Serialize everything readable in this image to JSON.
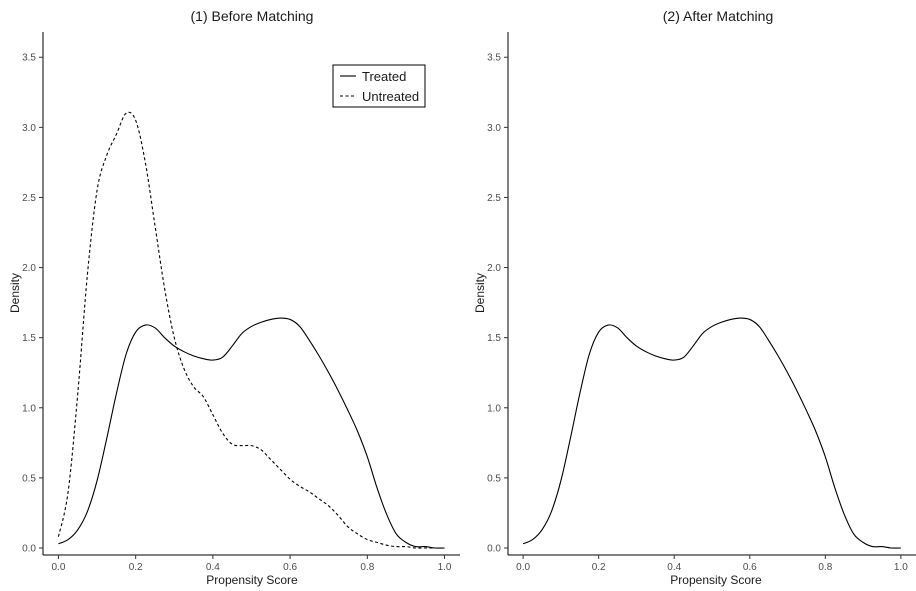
{
  "chart_data": [
    {
      "type": "line",
      "title": "(1) Before Matching",
      "xlabel": "Propensity Score",
      "ylabel": "Density",
      "xlim": [
        -0.04,
        1.04
      ],
      "ylim": [
        -0.05,
        3.68
      ],
      "x_ticks": [
        0.0,
        0.2,
        0.4,
        0.6,
        0.8,
        1.0
      ],
      "x_tick_labels": [
        "0.0",
        "0.2",
        "0.4",
        "0.6",
        "0.8",
        "1.0"
      ],
      "y_ticks": [
        0.0,
        0.5,
        1.0,
        1.5,
        2.0,
        2.5,
        3.0,
        3.5
      ],
      "y_tick_labels": [
        "0.0",
        "0.5",
        "1.0",
        "1.5",
        "2.0",
        "2.5",
        "3.0",
        "3.5"
      ],
      "grid": false,
      "legend": {
        "position": "top-right",
        "entries": [
          "Treated",
          "Untreated"
        ]
      },
      "series": [
        {
          "name": "Treated",
          "line_style": "solid",
          "color": "#000000",
          "x": [
            0.0,
            0.025,
            0.05,
            0.075,
            0.1,
            0.125,
            0.15,
            0.175,
            0.2,
            0.225,
            0.25,
            0.275,
            0.3,
            0.325,
            0.35,
            0.375,
            0.4,
            0.425,
            0.45,
            0.475,
            0.5,
            0.525,
            0.55,
            0.575,
            0.6,
            0.625,
            0.65,
            0.675,
            0.7,
            0.725,
            0.75,
            0.775,
            0.8,
            0.825,
            0.85,
            0.875,
            0.9,
            0.925,
            0.95,
            0.975,
            1.0
          ],
          "y": [
            0.03,
            0.06,
            0.13,
            0.26,
            0.48,
            0.78,
            1.1,
            1.38,
            1.54,
            1.59,
            1.57,
            1.5,
            1.44,
            1.4,
            1.37,
            1.35,
            1.34,
            1.36,
            1.44,
            1.53,
            1.58,
            1.61,
            1.63,
            1.64,
            1.63,
            1.58,
            1.48,
            1.37,
            1.25,
            1.12,
            0.98,
            0.83,
            0.65,
            0.43,
            0.24,
            0.1,
            0.04,
            0.01,
            0.01,
            0.0,
            0.0
          ]
        },
        {
          "name": "Untreated",
          "line_style": "dashed",
          "color": "#000000",
          "x": [
            0.0,
            0.025,
            0.05,
            0.075,
            0.1,
            0.125,
            0.15,
            0.175,
            0.2,
            0.225,
            0.25,
            0.275,
            0.3,
            0.325,
            0.35,
            0.375,
            0.4,
            0.425,
            0.45,
            0.475,
            0.5,
            0.525,
            0.55,
            0.575,
            0.6,
            0.625,
            0.65,
            0.675,
            0.7,
            0.725,
            0.75,
            0.775,
            0.8,
            0.825,
            0.85,
            0.875,
            0.9,
            0.925,
            0.95,
            0.975,
            1.0
          ],
          "y": [
            0.08,
            0.4,
            1.1,
            1.95,
            2.55,
            2.8,
            2.95,
            3.1,
            3.05,
            2.75,
            2.3,
            1.85,
            1.5,
            1.28,
            1.15,
            1.08,
            0.95,
            0.82,
            0.74,
            0.73,
            0.73,
            0.7,
            0.63,
            0.56,
            0.49,
            0.44,
            0.4,
            0.35,
            0.3,
            0.23,
            0.15,
            0.1,
            0.06,
            0.04,
            0.02,
            0.01,
            0.01,
            0.0,
            0.0,
            0.0,
            0.0
          ]
        }
      ]
    },
    {
      "type": "line",
      "title": "(2) After Matching",
      "xlabel": "Propensity Score",
      "ylabel": "Density",
      "xlim": [
        -0.04,
        1.04
      ],
      "ylim": [
        -0.05,
        3.68
      ],
      "x_ticks": [
        0.0,
        0.2,
        0.4,
        0.6,
        0.8,
        1.0
      ],
      "x_tick_labels": [
        "0.0",
        "0.2",
        "0.4",
        "0.6",
        "0.8",
        "1.0"
      ],
      "y_ticks": [
        0.0,
        0.5,
        1.0,
        1.5,
        2.0,
        2.5,
        3.0,
        3.5
      ],
      "y_tick_labels": [
        "0.0",
        "0.5",
        "1.0",
        "1.5",
        "2.0",
        "2.5",
        "3.0",
        "3.5"
      ],
      "grid": false,
      "series": [
        {
          "line_style": "solid",
          "color": "#000000",
          "x": [
            0.0,
            0.025,
            0.05,
            0.075,
            0.1,
            0.125,
            0.15,
            0.175,
            0.2,
            0.225,
            0.25,
            0.275,
            0.3,
            0.325,
            0.35,
            0.375,
            0.4,
            0.425,
            0.45,
            0.475,
            0.5,
            0.525,
            0.55,
            0.575,
            0.6,
            0.625,
            0.65,
            0.675,
            0.7,
            0.725,
            0.75,
            0.775,
            0.8,
            0.825,
            0.85,
            0.875,
            0.9,
            0.925,
            0.95,
            0.975,
            1.0
          ],
          "y": [
            0.03,
            0.06,
            0.13,
            0.26,
            0.48,
            0.78,
            1.1,
            1.38,
            1.54,
            1.59,
            1.57,
            1.5,
            1.44,
            1.4,
            1.37,
            1.35,
            1.34,
            1.36,
            1.44,
            1.53,
            1.58,
            1.61,
            1.63,
            1.64,
            1.63,
            1.58,
            1.48,
            1.37,
            1.25,
            1.12,
            0.98,
            0.83,
            0.65,
            0.43,
            0.24,
            0.1,
            0.04,
            0.01,
            0.01,
            0.0,
            0.0
          ]
        }
      ]
    }
  ]
}
